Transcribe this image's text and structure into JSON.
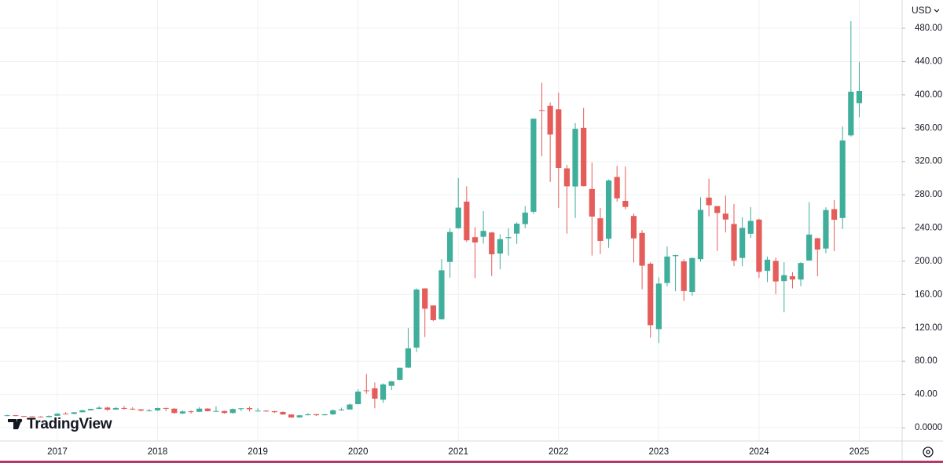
{
  "chart_data": {
    "type": "candlestick",
    "currency": "USD",
    "watermark": "TradingView",
    "categories": [
      null,
      null,
      null,
      null,
      null,
      null,
      "2017",
      null,
      null,
      null,
      null,
      null,
      null,
      null,
      null,
      null,
      null,
      null,
      "2018",
      null,
      null,
      null,
      null,
      null,
      null,
      null,
      null,
      null,
      null,
      null,
      "2019",
      null,
      null,
      null,
      null,
      null,
      null,
      null,
      null,
      null,
      null,
      null,
      "2020",
      null,
      null,
      null,
      null,
      null,
      null,
      null,
      null,
      null,
      null,
      null,
      "2021",
      null,
      null,
      null,
      null,
      null,
      null,
      null,
      null,
      null,
      null,
      null,
      "2022",
      null,
      null,
      null,
      null,
      null,
      null,
      null,
      null,
      null,
      null,
      null,
      "2023",
      null,
      null,
      null,
      null,
      null,
      null,
      null,
      null,
      null,
      null,
      null,
      "2024",
      null,
      null,
      null,
      null,
      null,
      null,
      null,
      null,
      null,
      null,
      null,
      "2025"
    ],
    "open": [
      14.3,
      15.0,
      14.1,
      13.6,
      13.3,
      12.7,
      14.3,
      16.9,
      16.6,
      18.6,
      21.0,
      22.7,
      24.2,
      21.8,
      23.7,
      22.8,
      22.1,
      20.6,
      20.8,
      23.7,
      22.9,
      17.1,
      19.7,
      19.1,
      23.0,
      19.9,
      20.1,
      17.7,
      22.6,
      23.6,
      20.4,
      20.5,
      19.9,
      18.9,
      15.9,
      12.4,
      15.0,
      16.2,
      15.0,
      16.1,
      20.9,
      21.9,
      28.3,
      44.9,
      47.4,
      33.6,
      50.3,
      57.6,
      72.2,
      96.3,
      167.4,
      146.9,
      130.3,
      199.2,
      239.8,
      271.7,
      229.0,
      229.5,
      234.6,
      209.3,
      227.9,
      233.3,
      244.7,
      259.5,
      381.7,
      386.9,
      382.6,
      311.7,
      289.9,
      360.4,
      286.9,
      251.7,
      227.0,
      301.3,
      272.6,
      254.5,
      234.1,
      197.1,
      118.5,
      173.9,
      206.2,
      199.9,
      163.2,
      202.6,
      276.5,
      266.3,
      257.3,
      244.8,
      204.0,
      233.1,
      250.1,
      188.5,
      200.5,
      176.2,
      182.0,
      178.1,
      201.0,
      227.7,
      215.3,
      262.7,
      252.0,
      351.4,
      390.1
    ],
    "high": [
      15.5,
      15.3,
      14.3,
      14.0,
      13.9,
      14.7,
      17.4,
      18.8,
      18.6,
      21.8,
      22.8,
      25.9,
      25.4,
      24.7,
      26.0,
      24.5,
      22.3,
      22.6,
      24.0,
      24.0,
      23.4,
      20.6,
      20.9,
      24.8,
      23.4,
      25.8,
      20.5,
      23.1,
      23.6,
      25.3,
      23.5,
      20.9,
      20.2,
      19.7,
      16.3,
      15.4,
      17.5,
      16.6,
      16.6,
      22.1,
      24.1,
      29.0,
      46.0,
      64.6,
      54.2,
      53.2,
      56.2,
      72.2,
      119.7,
      167.5,
      167.5,
      146.9,
      202.6,
      239.6,
      300.1,
      290.1,
      241.0,
      260.3,
      235.3,
      232.5,
      239.6,
      246.8,
      266.3,
      371.7,
      414.5,
      390.9,
      402.7,
      315.9,
      366.0,
      384.3,
      318.5,
      264.2,
      298.3,
      314.7,
      313.8,
      257.5,
      237.4,
      198.9,
      180.7,
      217.7,
      207.8,
      202.7,
      204.5,
      276.9,
      299.3,
      266.5,
      278.9,
      268.9,
      252.8,
      265.1,
      251.3,
      205.6,
      204.5,
      198.9,
      187.0,
      198.9,
      271.0,
      228.2,
      264.9,
      273.5,
      361.9,
      488.5,
      439.7
    ],
    "low": [
      14.0,
      13.9,
      12.8,
      13.0,
      12.4,
      12.6,
      14.2,
      16.6,
      16.2,
      18.5,
      20.6,
      22.1,
      20.2,
      21.4,
      21.7,
      21.5,
      19.5,
      19.5,
      20.1,
      20.0,
      16.6,
      16.3,
      16.9,
      18.9,
      19.5,
      19.3,
      16.9,
      16.9,
      19.8,
      19.5,
      19.8,
      19.1,
      17.6,
      15.5,
      11.8,
      11.9,
      14.8,
      14.2,
      14.7,
      15.2,
      20.4,
      21.8,
      28.1,
      40.9,
      23.4,
      29.8,
      45.2,
      57.0,
      71.7,
      91.0,
      109.0,
      128.1,
      130.0,
      180.2,
      239.1,
      223.0,
      179.8,
      221.2,
      182.3,
      190.4,
      206.9,
      220.9,
      240.0,
      256.9,
      326.2,
      295.4,
      264.0,
      233.3,
      252.0,
      290.0,
      206.9,
      208.7,
      216.2,
      271.8,
      262.5,
      198.6,
      166.2,
      108.2,
      101.8,
      169.9,
      163.9,
      152.4,
      158.8,
      199.4,
      254.1,
      212.4,
      234.6,
      194.1,
      194.1,
      228.2,
      180.1,
      175.0,
      160.5,
      138.8,
      167.4,
      170.0,
      200.7,
      182.0,
      209.6,
      212.1,
      238.9,
      349.7,
      373.0
    ],
    "close": [
      15.0,
      14.1,
      13.6,
      13.2,
      12.7,
      14.2,
      16.9,
      16.7,
      18.6,
      20.9,
      22.7,
      24.1,
      21.6,
      23.7,
      22.7,
      22.1,
      20.6,
      20.8,
      23.6,
      22.9,
      17.7,
      19.6,
      19.0,
      22.9,
      19.9,
      20.1,
      17.7,
      22.5,
      23.4,
      22.2,
      20.5,
      20.0,
      18.7,
      15.9,
      12.3,
      14.9,
      16.1,
      15.0,
      16.1,
      20.9,
      21.9,
      27.9,
      43.4,
      44.5,
      34.9,
      52.1,
      55.7,
      72.0,
      95.4,
      166.1,
      143.0,
      129.3,
      189.2,
      235.2,
      264.5,
      225.2,
      222.6,
      236.5,
      208.4,
      226.6,
      229.1,
      245.2,
      258.5,
      371.3,
      381.6,
      352.3,
      312.2,
      290.1,
      359.2,
      290.3,
      253.7,
      224.5,
      297.1,
      275.6,
      265.3,
      227.5,
      194.7,
      123.2,
      173.2,
      205.7,
      207.5,
      164.3,
      203.9,
      261.8,
      267.4,
      258.1,
      250.2,
      200.8,
      240.1,
      248.5,
      187.3,
      201.9,
      175.8,
      183.3,
      178.1,
      197.9,
      232.1,
      214.1,
      261.6,
      249.9,
      345.2,
      403.8,
      404.6
    ],
    "up_color": "#3fae9a",
    "down_color": "#e55d5a",
    "ylim": [
      -16,
      514
    ],
    "yticks": [
      {
        "value": 0,
        "label": "0.0000"
      },
      {
        "value": 40,
        "label": "40.00"
      },
      {
        "value": 80,
        "label": "80.00"
      },
      {
        "value": 120,
        "label": "120.00"
      },
      {
        "value": 160,
        "label": "160.00"
      },
      {
        "value": 200,
        "label": "200.00"
      },
      {
        "value": 240,
        "label": "240.00"
      },
      {
        "value": 280,
        "label": "280.00"
      },
      {
        "value": 320,
        "label": "320.00"
      },
      {
        "value": 360,
        "label": "360.00"
      },
      {
        "value": 400,
        "label": "400.00"
      },
      {
        "value": 440,
        "label": "440.00"
      },
      {
        "value": 480,
        "label": "480.00"
      }
    ],
    "grid": true
  }
}
